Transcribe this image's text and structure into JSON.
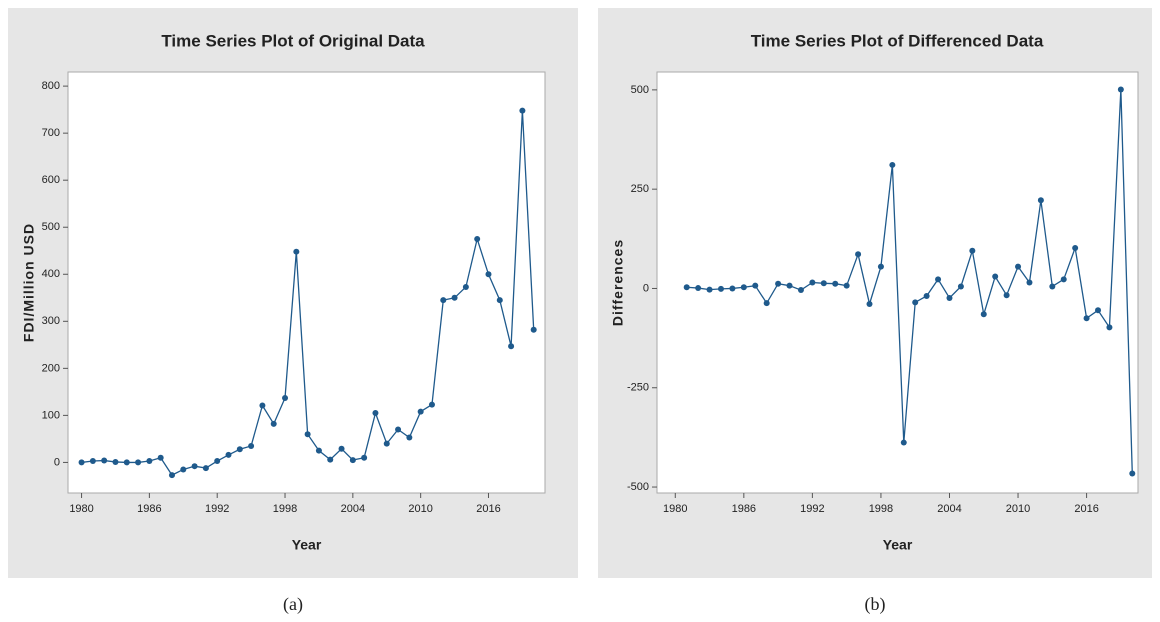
{
  "chart_data": [
    {
      "type": "line",
      "title": "Time Series Plot of Original Data",
      "x_label": "Year",
      "y_label": "FDI/Million USD",
      "x": [
        1980,
        1981,
        1982,
        1983,
        1984,
        1985,
        1986,
        1987,
        1988,
        1989,
        1990,
        1991,
        1992,
        1993,
        1994,
        1995,
        1996,
        1997,
        1998,
        1999,
        2000,
        2001,
        2002,
        2003,
        2004,
        2005,
        2006,
        2007,
        2008,
        2009,
        2010,
        2011,
        2012,
        2013,
        2014,
        2015,
        2016,
        2017,
        2018,
        2019,
        2020
      ],
      "values": [
        0,
        3,
        4,
        1,
        0,
        0,
        3,
        10,
        -27,
        -15,
        -8,
        -12,
        3,
        16,
        28,
        35,
        121,
        82,
        137,
        448,
        60,
        25,
        6,
        29,
        5,
        10,
        105,
        40,
        70,
        53,
        108,
        123,
        345,
        350,
        373,
        475,
        400,
        345,
        247,
        748,
        282
      ],
      "color": "#1f5a8c",
      "xlim": [
        1978.8,
        2021
      ],
      "xticks": [
        1980,
        1986,
        1992,
        1998,
        2004,
        2010,
        2016
      ],
      "ylim": [
        -65,
        830
      ],
      "yticks": [
        0,
        100,
        200,
        300,
        400,
        500,
        600,
        700,
        800
      ]
    },
    {
      "type": "line",
      "title": "Time Series Plot of Differenced Data",
      "x_label": "Year",
      "y_label": "Differences",
      "x": [
        1981,
        1982,
        1983,
        1984,
        1985,
        1986,
        1987,
        1988,
        1989,
        1990,
        1991,
        1992,
        1993,
        1994,
        1995,
        1996,
        1997,
        1998,
        1999,
        2000,
        2001,
        2002,
        2003,
        2004,
        2005,
        2006,
        2007,
        2008,
        2009,
        2010,
        2011,
        2012,
        2013,
        2014,
        2015,
        2016,
        2017,
        2018,
        2019,
        2020
      ],
      "values": [
        3,
        1,
        -3,
        -1,
        0,
        3,
        7,
        -37,
        12,
        7,
        -4,
        15,
        13,
        12,
        7,
        86,
        -39,
        55,
        311,
        -388,
        -35,
        -19,
        23,
        -24,
        5,
        95,
        -65,
        30,
        -17,
        55,
        15,
        222,
        5,
        23,
        102,
        -75,
        -55,
        -98,
        501,
        -466
      ],
      "color": "#1f5a8c",
      "xlim": [
        1978.4,
        2020.5
      ],
      "xticks": [
        1980,
        1986,
        1992,
        1998,
        2004,
        2010,
        2016
      ],
      "ylim": [
        -515,
        545
      ],
      "yticks": [
        -500,
        -250,
        0,
        250,
        500
      ]
    }
  ],
  "captions": [
    "(a)",
    "(b)"
  ]
}
